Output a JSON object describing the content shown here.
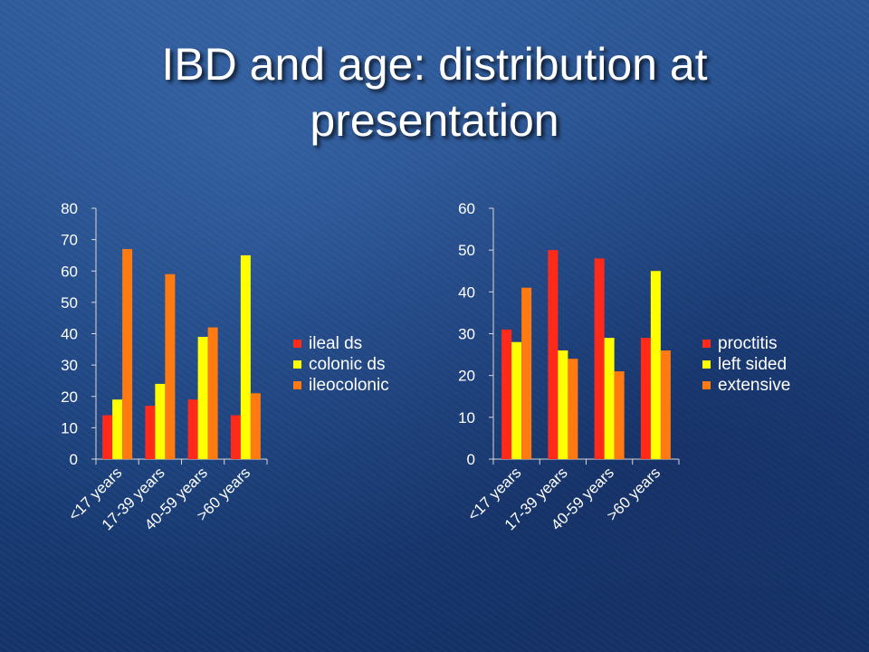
{
  "slide": {
    "title_line1": "IBD and age: distribution at",
    "title_line2": "presentation"
  },
  "chart_data": [
    {
      "type": "bar",
      "categories": [
        "<17 years",
        "17-39 years",
        "40-59 years",
        ">60 years"
      ],
      "series": [
        {
          "name": "ileal ds",
          "color": "#ff2a1a",
          "values": [
            14,
            17,
            19,
            14
          ]
        },
        {
          "name": "colonic ds",
          "color": "#ffff00",
          "values": [
            19,
            24,
            39,
            65
          ]
        },
        {
          "name": "ileocolonic",
          "color": "#ff7a10",
          "values": [
            67,
            59,
            42,
            21
          ]
        }
      ],
      "ylim": [
        0,
        80
      ],
      "yticks": [
        0,
        10,
        20,
        30,
        40,
        50,
        60,
        70,
        80
      ],
      "grid": false,
      "legend": "right"
    },
    {
      "type": "bar",
      "categories": [
        "<17 years",
        "17-39 years",
        "40-59 years",
        ">60 years"
      ],
      "series": [
        {
          "name": "proctitis",
          "color": "#ff2a1a",
          "values": [
            31,
            50,
            48,
            29
          ]
        },
        {
          "name": "left sided",
          "color": "#ffff00",
          "values": [
            28,
            26,
            29,
            45
          ]
        },
        {
          "name": "extensive",
          "color": "#ff7a10",
          "values": [
            41,
            24,
            21,
            26
          ]
        }
      ],
      "ylim": [
        0,
        60
      ],
      "yticks": [
        0,
        10,
        20,
        30,
        40,
        50,
        60
      ],
      "grid": false,
      "legend": "right"
    }
  ]
}
